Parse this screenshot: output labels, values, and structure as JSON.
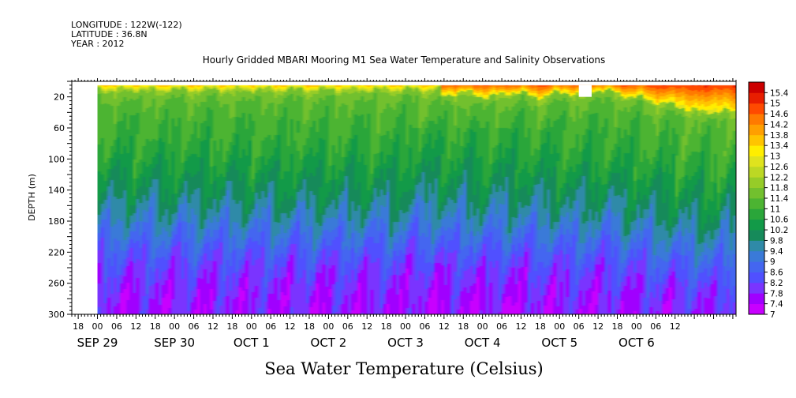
{
  "header": {
    "longitude": "LONGITUDE : 122W(-122)",
    "latitude": "LATITUDE : 36.8N",
    "year": "YEAR : 2012"
  },
  "chart_data": {
    "type": "heatmap",
    "title": "Hourly Gridded MBARI Mooring M1 Sea Water Temperature and Salinity Observations",
    "variable_label": "Sea Water Temperature (Celsius)",
    "ylabel": "DEPTH (m)",
    "ylim": [
      300,
      0
    ],
    "y_ticks": [
      20,
      60,
      100,
      140,
      180,
      220,
      260,
      300
    ],
    "x_axis": {
      "start_hour": "SEP 28 16:00",
      "end_hour": "OCT 6 19:00",
      "hour_ticks": [
        "18",
        "00",
        "06",
        "12",
        "18",
        "00",
        "06",
        "12",
        "18",
        "00",
        "06",
        "12",
        "18",
        "00",
        "06",
        "12",
        "18",
        "00",
        "06",
        "12",
        "18",
        "00",
        "06",
        "12",
        "18",
        "00",
        "06",
        "12",
        "18",
        "00",
        "06",
        "12"
      ],
      "date_labels": [
        {
          "label": "SEP 29",
          "hour_index": 8
        },
        {
          "label": "SEP 30",
          "hour_index": 32
        },
        {
          "label": "OCT  1",
          "hour_index": 56
        },
        {
          "label": "OCT  2",
          "hour_index": 80
        },
        {
          "label": "OCT  3",
          "hour_index": 104
        },
        {
          "label": "OCT  4",
          "hour_index": 128
        },
        {
          "label": "OCT  5",
          "hour_index": 152
        },
        {
          "label": "OCT  6",
          "hour_index": 176
        }
      ]
    },
    "data_start": "SEP 29 00:00",
    "missing_block": {
      "from": "OCT 5 06:00",
      "to": "OCT 5 10:00",
      "depth": [
        5,
        20
      ]
    },
    "colorbar": {
      "levels": [
        7,
        7.4,
        7.8,
        8.2,
        8.6,
        9,
        9.4,
        9.8,
        10.2,
        10.6,
        11,
        11.4,
        11.8,
        12.2,
        12.6,
        13,
        13.4,
        13.8,
        14.2,
        14.6,
        15,
        15.4
      ],
      "labels": [
        "7",
        "7.4",
        "7.8",
        "8.2",
        "8.6",
        "9",
        "9.4",
        "9.8",
        "10.2",
        "10.6",
        "11",
        "11.4",
        "11.8",
        "12.2",
        "12.6",
        "13",
        "13.4",
        "13.8",
        "14.2",
        "14.6",
        "15",
        "15.4"
      ],
      "colors": [
        "#c800ff",
        "#a000ff",
        "#7a34ff",
        "#5050ff",
        "#4466f0",
        "#3a7ad8",
        "#2f8aa8",
        "#168a5a",
        "#129a48",
        "#2aa63a",
        "#4cb432",
        "#72c02e",
        "#96cc28",
        "#bcd824",
        "#dfe31e",
        "#ffee00",
        "#ffc400",
        "#ff9f00",
        "#ff7a00",
        "#ff4a00",
        "#e81e00",
        "#cc0000"
      ]
    },
    "profile_depths": [
      5,
      10,
      15,
      20,
      30,
      40,
      60,
      80,
      100,
      120,
      140,
      160,
      180,
      200,
      220,
      240,
      260,
      280,
      300
    ],
    "profile_temps": [
      15.2,
      14.0,
      12.6,
      11.9,
      11.5,
      11.3,
      11.1,
      10.95,
      10.75,
      10.5,
      10.2,
      9.9,
      9.55,
      9.15,
      8.75,
      8.35,
      8.05,
      7.85,
      7.7
    ]
  }
}
